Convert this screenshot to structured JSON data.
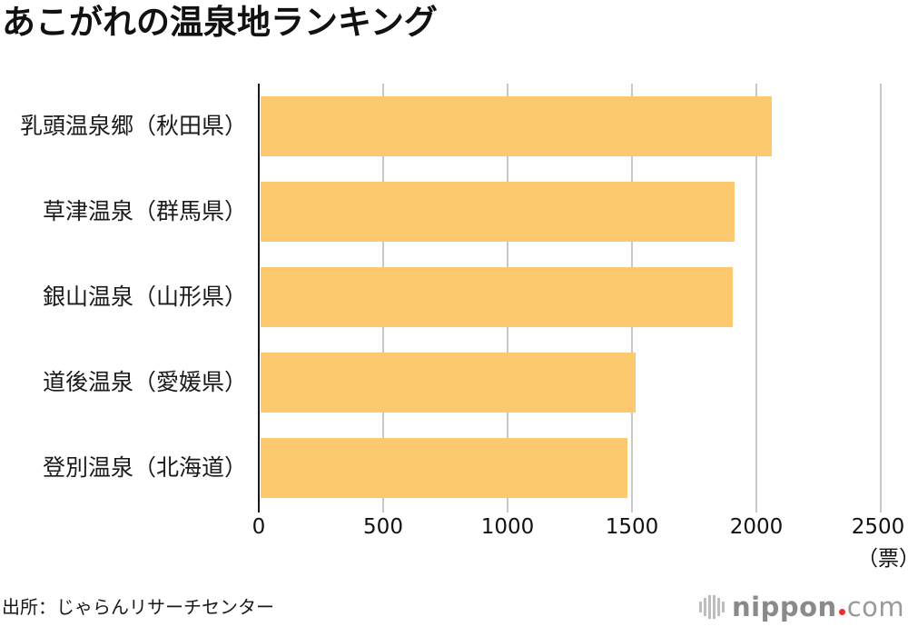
{
  "title": "あこがれの温泉地ランキング",
  "source": "出所：じゃらんリサーチセンター",
  "logo": {
    "main": "nippon",
    "tld": "com",
    "dot_color": "#e8312a"
  },
  "colors": {
    "bar": "#fcc96e",
    "grid": "#c8c8c8",
    "axis": "#1a1a1a"
  },
  "axis": {
    "ticks": [
      "0",
      "500",
      "1000",
      "1500",
      "2000",
      "2500"
    ],
    "unit": "（票）"
  },
  "chart_data": {
    "type": "bar",
    "orientation": "horizontal",
    "title": "あこがれの温泉地ランキング",
    "categories": [
      "乳頭温泉郷（秋田県）",
      "草津温泉（群馬県）",
      "銀山温泉（山形県）",
      "道後温泉（愛媛県）",
      "登別温泉（北海道）"
    ],
    "values": [
      2064,
      1915,
      1909,
      1517,
      1484
    ],
    "xlabel": "（票）",
    "ylabel": "",
    "xlim": [
      0,
      2500
    ],
    "xticks": [
      0,
      500,
      1000,
      1500,
      2000,
      2500
    ],
    "grid": true,
    "legend": null,
    "source": "出所：じゃらんリサーチセンター",
    "bar_color": "#fcc96e"
  }
}
